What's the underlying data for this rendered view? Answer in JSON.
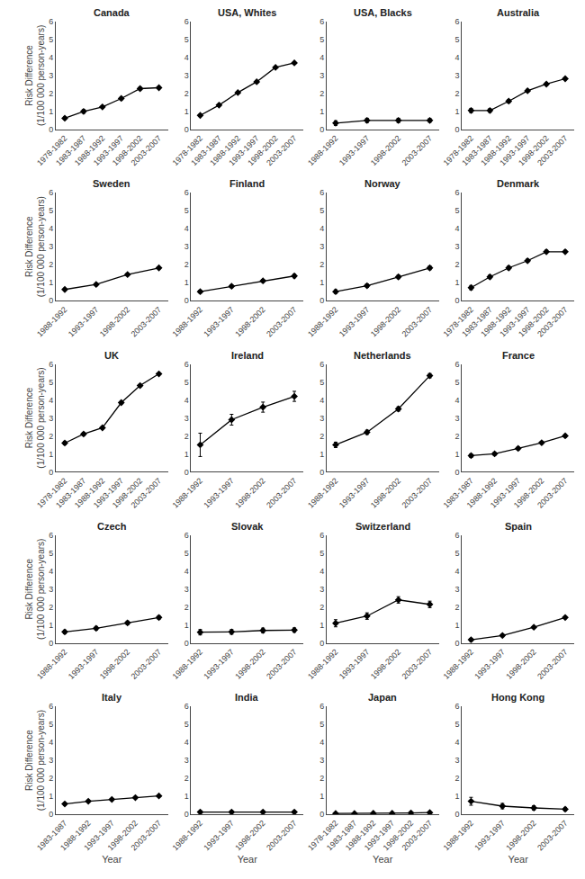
{
  "chart_data": [
    {
      "type": "line",
      "title": "Canada",
      "categories": [
        "1978-1982",
        "1983-1987",
        "1988-1992",
        "1993-1997",
        "1998-2002",
        "2003-2007"
      ],
      "values": [
        0.62,
        1.0,
        1.25,
        1.72,
        2.27,
        2.32
      ],
      "error_low": [
        0.07,
        0.1,
        0.07,
        0.07,
        0.07,
        0.06
      ],
      "error_high": [
        0.07,
        0.1,
        0.07,
        0.07,
        0.07,
        0.06
      ],
      "ylim": [
        0,
        6
      ],
      "yticks": [
        0,
        1,
        2,
        3,
        4,
        5,
        6
      ],
      "color": "black",
      "marker": "diamond",
      "line_style": "solid",
      "grid": false,
      "ylabel": "Risk Difference\n(1/100 000 person-years)"
    },
    {
      "type": "line",
      "title": "USA, Whites",
      "categories": [
        "1978-1982",
        "1983-1987",
        "1988-1992",
        "1993-1997",
        "1998-2002",
        "2003-2007"
      ],
      "values": [
        0.78,
        1.35,
        2.05,
        2.65,
        3.45,
        3.7
      ],
      "error_low": [
        0.05,
        0.06,
        0.06,
        0.06,
        0.06,
        0.05
      ],
      "error_high": [
        0.05,
        0.06,
        0.06,
        0.06,
        0.06,
        0.05
      ],
      "ylim": [
        0,
        6
      ],
      "yticks": [
        0,
        1,
        2,
        3,
        4,
        5,
        6
      ],
      "color": "black",
      "marker": "diamond",
      "line_style": "solid",
      "grid": false
    },
    {
      "type": "line",
      "title": "USA, Blacks",
      "categories": [
        "1988-1992",
        "1993-1997",
        "1998-2002",
        "2003-2007"
      ],
      "values": [
        0.35,
        0.5,
        0.5,
        0.5
      ],
      "error_low": [
        0.13,
        0.12,
        0.12,
        0.1
      ],
      "error_high": [
        0.13,
        0.12,
        0.12,
        0.1
      ],
      "ylim": [
        0,
        6
      ],
      "yticks": [
        0,
        1,
        2,
        3,
        4,
        5,
        6
      ],
      "color": "black",
      "marker": "diamond",
      "line_style": "solid",
      "grid": false
    },
    {
      "type": "line",
      "title": "Australia",
      "categories": [
        "1978-1982",
        "1983-1987",
        "1988-1992",
        "1993-1997",
        "1998-2002",
        "2003-2007"
      ],
      "values": [
        1.05,
        1.05,
        1.57,
        2.15,
        2.52,
        2.82
      ],
      "error_low": [
        0.12,
        0.1,
        0.09,
        0.08,
        0.07,
        0.06
      ],
      "error_high": [
        0.12,
        0.1,
        0.09,
        0.08,
        0.07,
        0.06
      ],
      "ylim": [
        0,
        6
      ],
      "yticks": [
        0,
        1,
        2,
        3,
        4,
        5,
        6
      ],
      "color": "black",
      "marker": "diamond",
      "line_style": "solid",
      "grid": false
    },
    {
      "type": "line",
      "title": "Sweden",
      "categories": [
        "1988-1992",
        "1993-1997",
        "1998-2002",
        "2003-2007"
      ],
      "values": [
        0.62,
        0.9,
        1.45,
        1.82
      ],
      "error_low": [
        0.07,
        0.08,
        0.07,
        0.06
      ],
      "error_high": [
        0.07,
        0.08,
        0.07,
        0.06
      ],
      "ylim": [
        0,
        6
      ],
      "yticks": [
        0,
        1,
        2,
        3,
        4,
        5,
        6
      ],
      "color": "black",
      "marker": "diamond",
      "line_style": "solid",
      "grid": false,
      "ylabel": "Risk Difference\n(1/100 000 person-years)"
    },
    {
      "type": "line",
      "title": "Finland",
      "categories": [
        "1988-1992",
        "1993-1997",
        "1998-2002",
        "2003-2007"
      ],
      "values": [
        0.5,
        0.8,
        1.1,
        1.37
      ],
      "error_low": [
        0.08,
        0.08,
        0.08,
        0.1
      ],
      "error_high": [
        0.08,
        0.08,
        0.08,
        0.1
      ],
      "ylim": [
        0,
        6
      ],
      "yticks": [
        0,
        1,
        2,
        3,
        4,
        5,
        6
      ],
      "color": "black",
      "marker": "diamond",
      "line_style": "solid",
      "grid": false
    },
    {
      "type": "line",
      "title": "Norway",
      "categories": [
        "1988-1992",
        "1993-1997",
        "1998-2002",
        "2003-2007"
      ],
      "values": [
        0.5,
        0.83,
        1.32,
        1.82
      ],
      "error_low": [
        0.1,
        0.1,
        0.1,
        0.1
      ],
      "error_high": [
        0.1,
        0.1,
        0.1,
        0.1
      ],
      "ylim": [
        0,
        6
      ],
      "yticks": [
        0,
        1,
        2,
        3,
        4,
        5,
        6
      ],
      "color": "black",
      "marker": "diamond",
      "line_style": "solid",
      "grid": false
    },
    {
      "type": "line",
      "title": "Denmark",
      "categories": [
        "1978-1982",
        "1983-1987",
        "1988-1992",
        "1993-1997",
        "1998-2002",
        "2003-2007"
      ],
      "values": [
        0.72,
        1.32,
        1.82,
        2.22,
        2.72,
        2.72
      ],
      "error_low": [
        0.12,
        0.1,
        0.1,
        0.09,
        0.09,
        0.08
      ],
      "error_high": [
        0.12,
        0.1,
        0.1,
        0.09,
        0.09,
        0.08
      ],
      "ylim": [
        0,
        6
      ],
      "yticks": [
        0,
        1,
        2,
        3,
        4,
        5,
        6
      ],
      "color": "black",
      "marker": "diamond",
      "line_style": "solid",
      "grid": false
    },
    {
      "type": "line",
      "title": "UK",
      "categories": [
        "1978-1982",
        "1983-1987",
        "1988-1992",
        "1993-1997",
        "1998-2002",
        "2003-2007"
      ],
      "values": [
        1.6,
        2.1,
        2.45,
        3.85,
        4.8,
        5.45
      ],
      "error_low": [
        0.1,
        0.08,
        0.07,
        0.07,
        0.06,
        0.05
      ],
      "error_high": [
        0.1,
        0.08,
        0.07,
        0.07,
        0.06,
        0.05
      ],
      "ylim": [
        0,
        6
      ],
      "yticks": [
        0,
        1,
        2,
        3,
        4,
        5,
        6
      ],
      "color": "black",
      "marker": "diamond",
      "line_style": "solid",
      "grid": false,
      "ylabel": "Risk Difference\n(1/100 000 person-years)"
    },
    {
      "type": "line",
      "title": "Ireland",
      "categories": [
        "1988-1992",
        "1993-1997",
        "1998-2002",
        "2003-2007"
      ],
      "values": [
        1.5,
        2.9,
        3.6,
        4.2
      ],
      "error_low": [
        0.65,
        0.3,
        0.28,
        0.28
      ],
      "error_high": [
        0.65,
        0.3,
        0.28,
        0.28
      ],
      "ylim": [
        0,
        6
      ],
      "yticks": [
        0,
        1,
        2,
        3,
        4,
        5,
        6
      ],
      "color": "black",
      "marker": "diamond",
      "line_style": "solid",
      "grid": false
    },
    {
      "type": "line",
      "title": "Netherlands",
      "categories": [
        "1988-1992",
        "1993-1997",
        "1998-2002",
        "2003-2007"
      ],
      "values": [
        1.5,
        2.2,
        3.5,
        5.35
      ],
      "error_low": [
        0.15,
        0.12,
        0.12,
        0.12
      ],
      "error_high": [
        0.15,
        0.12,
        0.12,
        0.12
      ],
      "ylim": [
        0,
        6
      ],
      "yticks": [
        0,
        1,
        2,
        3,
        4,
        5,
        6
      ],
      "color": "black",
      "marker": "diamond",
      "line_style": "solid",
      "grid": false
    },
    {
      "type": "line",
      "title": "France",
      "categories": [
        "1983-1987",
        "1988-1992",
        "1993-1997",
        "1998-2002",
        "2003-2007"
      ],
      "values": [
        0.9,
        1.0,
        1.3,
        1.62,
        2.0
      ],
      "error_low": [
        0.1,
        0.08,
        0.08,
        0.08,
        0.08
      ],
      "error_high": [
        0.1,
        0.08,
        0.08,
        0.08,
        0.08
      ],
      "ylim": [
        0,
        6
      ],
      "yticks": [
        0,
        1,
        2,
        3,
        4,
        5,
        6
      ],
      "color": "black",
      "marker": "diamond",
      "line_style": "solid",
      "grid": false
    },
    {
      "type": "line",
      "title": "Czech",
      "categories": [
        "1988-1992",
        "1993-1997",
        "1998-2002",
        "2003-2007"
      ],
      "values": [
        0.62,
        0.82,
        1.12,
        1.42
      ],
      "error_low": [
        0.1,
        0.1,
        0.1,
        0.1
      ],
      "error_high": [
        0.1,
        0.1,
        0.1,
        0.1
      ],
      "ylim": [
        0,
        6
      ],
      "yticks": [
        0,
        1,
        2,
        3,
        4,
        5,
        6
      ],
      "color": "black",
      "marker": "diamond",
      "line_style": "solid",
      "grid": false,
      "ylabel": "Risk Difference\n(1/100 000 person-years)"
    },
    {
      "type": "line",
      "title": "Slovak",
      "categories": [
        "1988-1992",
        "1993-1997",
        "1998-2002",
        "2003-2007"
      ],
      "values": [
        0.6,
        0.62,
        0.7,
        0.72
      ],
      "error_low": [
        0.15,
        0.13,
        0.13,
        0.12
      ],
      "error_high": [
        0.15,
        0.13,
        0.13,
        0.12
      ],
      "ylim": [
        0,
        6
      ],
      "yticks": [
        0,
        1,
        2,
        3,
        4,
        5,
        6
      ],
      "color": "black",
      "marker": "diamond",
      "line_style": "solid",
      "grid": false
    },
    {
      "type": "line",
      "title": "Switzerland",
      "categories": [
        "1988-1992",
        "1993-1997",
        "1998-2002",
        "2003-2007"
      ],
      "values": [
        1.1,
        1.5,
        2.4,
        2.15
      ],
      "error_low": [
        0.2,
        0.18,
        0.18,
        0.18
      ],
      "error_high": [
        0.2,
        0.18,
        0.18,
        0.18
      ],
      "ylim": [
        0,
        6
      ],
      "yticks": [
        0,
        1,
        2,
        3,
        4,
        5,
        6
      ],
      "color": "black",
      "marker": "diamond",
      "line_style": "solid",
      "grid": false
    },
    {
      "type": "line",
      "title": "Spain",
      "categories": [
        "1988-1992",
        "1993-1997",
        "1998-2002",
        "2003-2007"
      ],
      "values": [
        0.18,
        0.42,
        0.88,
        1.42
      ],
      "error_low": [
        0.08,
        0.07,
        0.06,
        0.07
      ],
      "error_high": [
        0.08,
        0.07,
        0.06,
        0.07
      ],
      "ylim": [
        0,
        6
      ],
      "yticks": [
        0,
        1,
        2,
        3,
        4,
        5,
        6
      ],
      "color": "black",
      "marker": "diamond",
      "line_style": "solid",
      "grid": false
    },
    {
      "type": "line",
      "title": "Italy",
      "categories": [
        "1983-1987",
        "1988-1992",
        "1993-1997",
        "1998-2002",
        "2003-2007"
      ],
      "values": [
        0.57,
        0.72,
        0.82,
        0.92,
        1.02
      ],
      "error_low": [
        0.07,
        0.06,
        0.05,
        0.05,
        0.05
      ],
      "error_high": [
        0.07,
        0.06,
        0.05,
        0.05,
        0.05
      ],
      "ylim": [
        0,
        6
      ],
      "yticks": [
        0,
        1,
        2,
        3,
        4,
        5,
        6
      ],
      "color": "black",
      "marker": "diamond",
      "line_style": "solid",
      "grid": false,
      "ylabel": "Risk Difference\n(1/100 000 person-years)",
      "xlabel": "Year"
    },
    {
      "type": "line",
      "title": "India",
      "categories": [
        "1988-1992",
        "1993-1997",
        "1998-2002",
        "2003-2007"
      ],
      "values": [
        0.12,
        0.12,
        0.12,
        0.12
      ],
      "error_low": [
        0.06,
        0.05,
        0.04,
        0.04
      ],
      "error_high": [
        0.06,
        0.05,
        0.04,
        0.04
      ],
      "ylim": [
        0,
        6
      ],
      "yticks": [
        0,
        1,
        2,
        3,
        4,
        5,
        6
      ],
      "color": "black",
      "marker": "diamond",
      "line_style": "solid",
      "grid": false,
      "xlabel": "Year"
    },
    {
      "type": "line",
      "title": "Japan",
      "categories": [
        "1978-1982",
        "1983-1987",
        "1988-1992",
        "1993-1997",
        "1998-2002",
        "2003-2007"
      ],
      "values": [
        0.04,
        0.04,
        0.05,
        0.05,
        0.07,
        0.09
      ],
      "error_low": [
        0.02,
        0.02,
        0.02,
        0.02,
        0.02,
        0.02
      ],
      "error_high": [
        0.02,
        0.02,
        0.02,
        0.02,
        0.02,
        0.02
      ],
      "ylim": [
        0,
        6
      ],
      "yticks": [
        0,
        1,
        2,
        3,
        4,
        5,
        6
      ],
      "color": "black",
      "marker": "diamond",
      "line_style": "solid",
      "grid": false,
      "xlabel": "Year"
    },
    {
      "type": "line",
      "title": "Hong Kong",
      "categories": [
        "1988-1992",
        "1993-1997",
        "1998-2002",
        "2003-2007"
      ],
      "values": [
        0.72,
        0.45,
        0.35,
        0.28
      ],
      "error_low": [
        0.22,
        0.15,
        0.12,
        0.1
      ],
      "error_high": [
        0.22,
        0.15,
        0.12,
        0.1
      ],
      "ylim": [
        0,
        6
      ],
      "yticks": [
        0,
        1,
        2,
        3,
        4,
        5,
        6
      ],
      "color": "black",
      "marker": "diamond",
      "line_style": "solid",
      "grid": false,
      "xlabel": "Year"
    }
  ]
}
